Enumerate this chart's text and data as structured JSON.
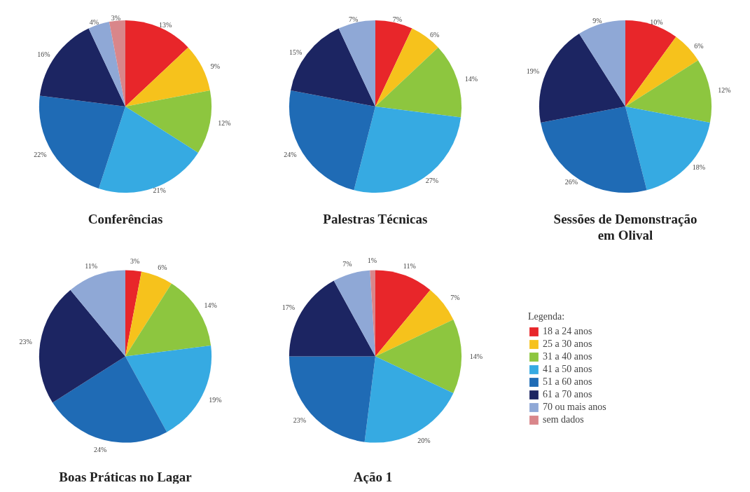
{
  "chart_data": [
    {
      "type": "pie",
      "title": "Conferências",
      "legend_title": "Legenda:",
      "categories": [
        "18 a 24 anos",
        "25 a 30 anos",
        "31 a 40 anos",
        "41 a 50 anos",
        "51 a 60 anos",
        "61 a 70 anos",
        "70 ou mais anos",
        "sem dados"
      ],
      "values": [
        13,
        9,
        12,
        21,
        22,
        16,
        4,
        3
      ],
      "value_labels": [
        "13%",
        "9%",
        "12%",
        "21%",
        "22%",
        "16%",
        "4%",
        "3%"
      ],
      "colors": [
        "#e8262a",
        "#f6c21c",
        "#8dc63f",
        "#36aae2",
        "#1f6bb5",
        "#1c2562",
        "#8fa8d6",
        "#d9868a"
      ],
      "legend": "right"
    },
    {
      "type": "pie",
      "title": "Palestras Técnicas",
      "categories": [
        null,
        null,
        null,
        null,
        null,
        null,
        null
      ],
      "values": [
        7,
        6,
        14,
        27,
        24,
        15,
        7
      ],
      "value_labels": [
        "7%",
        "6%",
        "14%",
        "27%",
        "24%",
        "15%",
        "7%"
      ],
      "colors": [
        "#e8262a",
        "#f6c21c",
        "#8dc63f",
        "#36aae2",
        "#1f6bb5",
        "#1c2562",
        "#8fa8d6"
      ]
    },
    {
      "type": "pie",
      "title": "Sessões de Demonstração em Olival",
      "categories": [
        null,
        null,
        null,
        null,
        null,
        null,
        null
      ],
      "values": [
        10,
        6,
        12,
        18,
        26,
        19,
        9
      ],
      "value_labels": [
        "10%",
        "6%",
        "12%",
        "18%",
        "26%",
        "19%",
        "9%"
      ],
      "colors": [
        "#e8262a",
        "#f6c21c",
        "#8dc63f",
        "#36aae2",
        "#1f6bb5",
        "#1c2562",
        "#8fa8d6"
      ]
    },
    {
      "type": "pie",
      "title": "Boas Práticas no Lagar",
      "categories": [
        null,
        null,
        null,
        null,
        null,
        null,
        null
      ],
      "values": [
        3,
        6,
        14,
        19,
        24,
        23,
        11
      ],
      "value_labels": [
        "3%",
        "6%",
        "14%",
        "19%",
        "24%",
        "23%",
        "11%"
      ],
      "colors": [
        "#e8262a",
        "#f6c21c",
        "#8dc63f",
        "#36aae2",
        "#1f6bb5",
        "#1c2562",
        "#8fa8d6"
      ]
    },
    {
      "type": "pie",
      "title": "Ação 1",
      "categories": [
        null,
        null,
        null,
        null,
        null,
        null,
        null,
        null
      ],
      "values": [
        11,
        7,
        14,
        20,
        23,
        17,
        7,
        1
      ],
      "value_labels": [
        "11%",
        "7%",
        "14%",
        "20%",
        "23%",
        "17%",
        "7%",
        "1%"
      ],
      "colors": [
        "#e8262a",
        "#f6c21c",
        "#8dc63f",
        "#36aae2",
        "#1f6bb5",
        "#1c2562",
        "#8fa8d6",
        "#d9868a"
      ]
    }
  ]
}
